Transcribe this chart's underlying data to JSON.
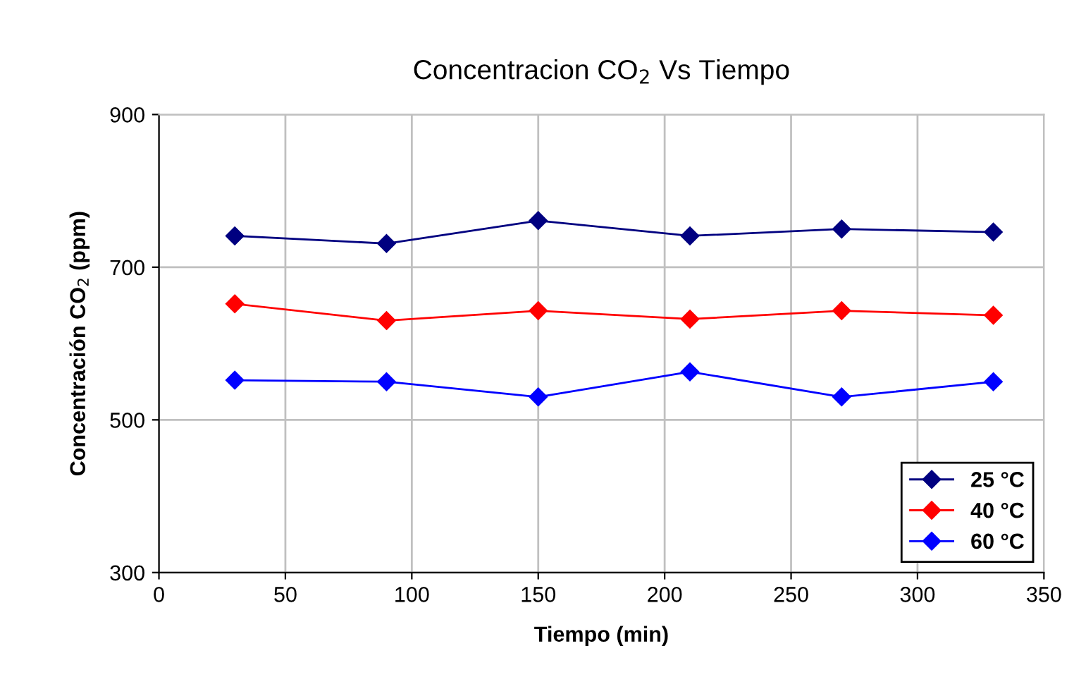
{
  "chart_data": {
    "type": "line",
    "title": "Concentracion CO$_{2}$ Vs Tiempo",
    "xlabel": "Tiempo (min)",
    "ylabel": "Concentración CO$_{2}$ (ppm)",
    "x": [
      30,
      90,
      150,
      210,
      270,
      330
    ],
    "series": [
      {
        "name": "25 °C",
        "color": "#000080",
        "values": [
          741,
          731,
          761,
          741,
          750,
          746
        ]
      },
      {
        "name": "40 °C",
        "color": "#ff0000",
        "values": [
          652,
          630,
          643,
          632,
          643,
          637
        ]
      },
      {
        "name": "60 °C",
        "color": "#0000ff",
        "values": [
          552,
          550,
          530,
          563,
          530,
          550
        ]
      }
    ],
    "xlim": [
      0,
      350
    ],
    "xticks": [
      0,
      50,
      100,
      150,
      200,
      250,
      300,
      350
    ],
    "ylim": [
      300,
      900
    ],
    "yticks": [
      300,
      500,
      700,
      900
    ],
    "grid": true,
    "legend": "bottom right",
    "marker": "diamond",
    "line_style": "solid"
  }
}
